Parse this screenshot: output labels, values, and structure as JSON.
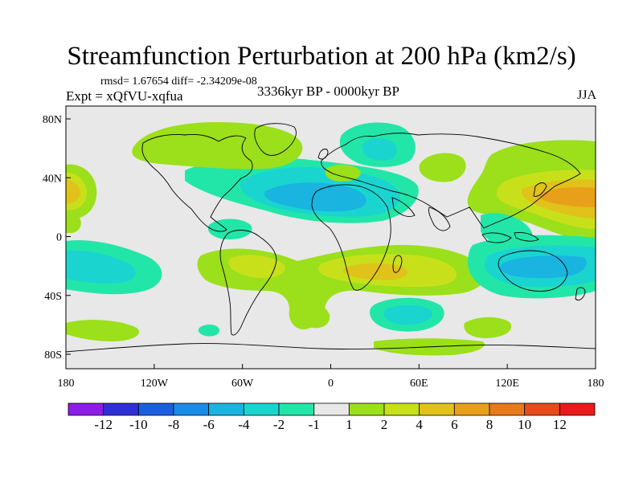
{
  "title": "Streamfunction Perturbation at 200 hPa (km2/s)",
  "stats": "rmsd= 1.67654 diff= -2.34209e-08",
  "experiment": "Expt = xQfVU-xqfua",
  "period": "3336kyr BP - 0000kyr BP",
  "season": "JJA",
  "axes": {
    "x_ticks": [
      "180",
      "120W",
      "60W",
      "0",
      "60E",
      "120E",
      "180"
    ],
    "y_ticks": [
      "80N",
      "40N",
      "0",
      "40S",
      "80S"
    ]
  },
  "colorbar": {
    "labels": [
      "-12",
      "-10",
      "-8",
      "-6",
      "-4",
      "-2",
      "-1",
      "1",
      "2",
      "4",
      "6",
      "8",
      "10",
      "12"
    ],
    "colors": [
      "#8c1ce6",
      "#2f2fd6",
      "#1a5fe0",
      "#1a8be8",
      "#19b4e0",
      "#1ad4d0",
      "#22e6a8",
      "#e8e8e8",
      "#9be01a",
      "#c8e01a",
      "#e0c21a",
      "#e8a01a",
      "#e87a1a",
      "#e84c1a",
      "#e81a1a"
    ]
  },
  "palette": {
    "background": "#e8e8e8",
    "neg1": "#22e6a8",
    "neg2": "#1ad4d0",
    "neg4": "#19b4e0",
    "pos1": "#9be01a",
    "pos2": "#c8e01a",
    "pos4": "#e0c21a",
    "pos6": "#e8a01a"
  }
}
